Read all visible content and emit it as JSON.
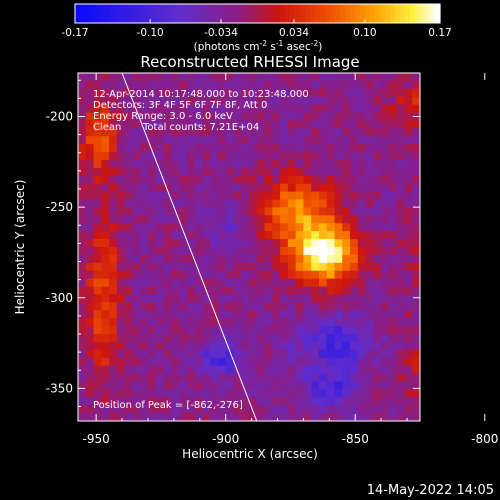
{
  "chart_data": {
    "type": "heatmap",
    "title": "Reconstructed RHESSI Image",
    "xlabel": "Heliocentric X (arcsec)",
    "ylabel": "Heliocentric Y (arcsec)",
    "xlim": [
      -957,
      -825
    ],
    "ylim": [
      -368,
      -176
    ],
    "xticks": [
      -950,
      -900,
      -850,
      -800
    ],
    "yticks": [
      -200,
      -250,
      -300,
      -350
    ],
    "colorbar": {
      "min": -0.17,
      "max": 0.17,
      "ticks": [
        "-0.17",
        "-0.10",
        "-0.034",
        "0.034",
        "0.10",
        "0.17"
      ],
      "units_prefix": "(photons cm",
      "units_exp1": "-2",
      "units_mid1": " s",
      "units_exp2": "-1",
      "units_mid2": " asec",
      "units_exp3": "-2",
      "units_suffix": ")"
    },
    "annotations": {
      "line1": "12-Apr-2014 10:17:48.000 to 10:23:48.000",
      "line2": "Detectors: 3F 4F 5F 6F 7F 8F, Att 0",
      "line3": "Energy Range: 3.0 - 6.0 keV",
      "line4_a": "Clean",
      "line4_b": "Total counts: 7.21E+04",
      "peak_label": "Position of Peak = [-862,-276]"
    },
    "peak": [
      -862,
      -276
    ],
    "limb_line": {
      "x1": -940,
      "y1": -176,
      "x2": -888,
      "y2": -368
    },
    "sources": [
      {
        "x": -862,
        "y": -276,
        "sx": 9,
        "sy": 11,
        "amp": 0.2
      },
      {
        "x": -873,
        "y": -252,
        "sx": 10,
        "sy": 12,
        "amp": 0.12
      },
      {
        "x": -949,
        "y": -212,
        "sx": 5,
        "sy": 14,
        "amp": 0.09
      },
      {
        "x": -947,
        "y": -300,
        "sx": 5,
        "sy": 32,
        "amp": 0.08
      },
      {
        "x": -812,
        "y": -272,
        "sx": 10,
        "sy": 18,
        "amp": 0.08
      },
      {
        "x": -812,
        "y": -340,
        "sx": 12,
        "sy": 14,
        "amp": 0.07
      },
      {
        "x": -826,
        "y": -195,
        "sx": 8,
        "sy": 10,
        "amp": 0.05
      },
      {
        "x": -902,
        "y": -335,
        "sx": 6,
        "sy": 6,
        "amp": -0.08
      },
      {
        "x": -858,
        "y": -325,
        "sx": 10,
        "sy": 10,
        "amp": -0.08
      },
      {
        "x": -860,
        "y": -350,
        "sx": 8,
        "sy": 7,
        "amp": -0.07
      },
      {
        "x": -898,
        "y": -262,
        "sx": 6,
        "sy": 10,
        "amp": -0.04
      }
    ],
    "base": -0.025
  },
  "footer": {
    "timestamp": "14-May-2022 14:05"
  },
  "colors": {
    "axis": "#ffffff",
    "limb": "#ffffff"
  }
}
